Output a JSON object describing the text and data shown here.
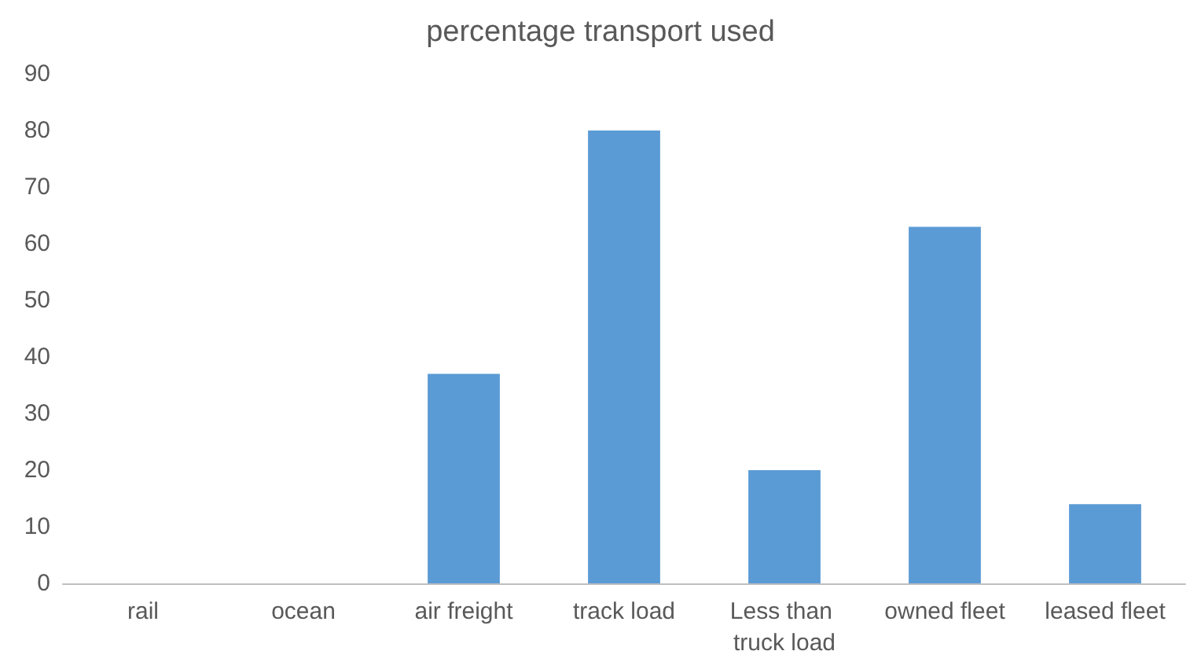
{
  "chart_data": {
    "type": "bar",
    "title": "percentage transport used",
    "categories": [
      "rail",
      "ocean",
      "air freight",
      "track load",
      "Less than truck load",
      "owned fleet",
      "leased fleet"
    ],
    "values": [
      0,
      0,
      37,
      80,
      20,
      63,
      14
    ],
    "color": "#5b9bd5",
    "ylim": [
      0,
      90
    ],
    "yticks": [
      0,
      10,
      20,
      30,
      40,
      50,
      60,
      70,
      80,
      90
    ]
  }
}
